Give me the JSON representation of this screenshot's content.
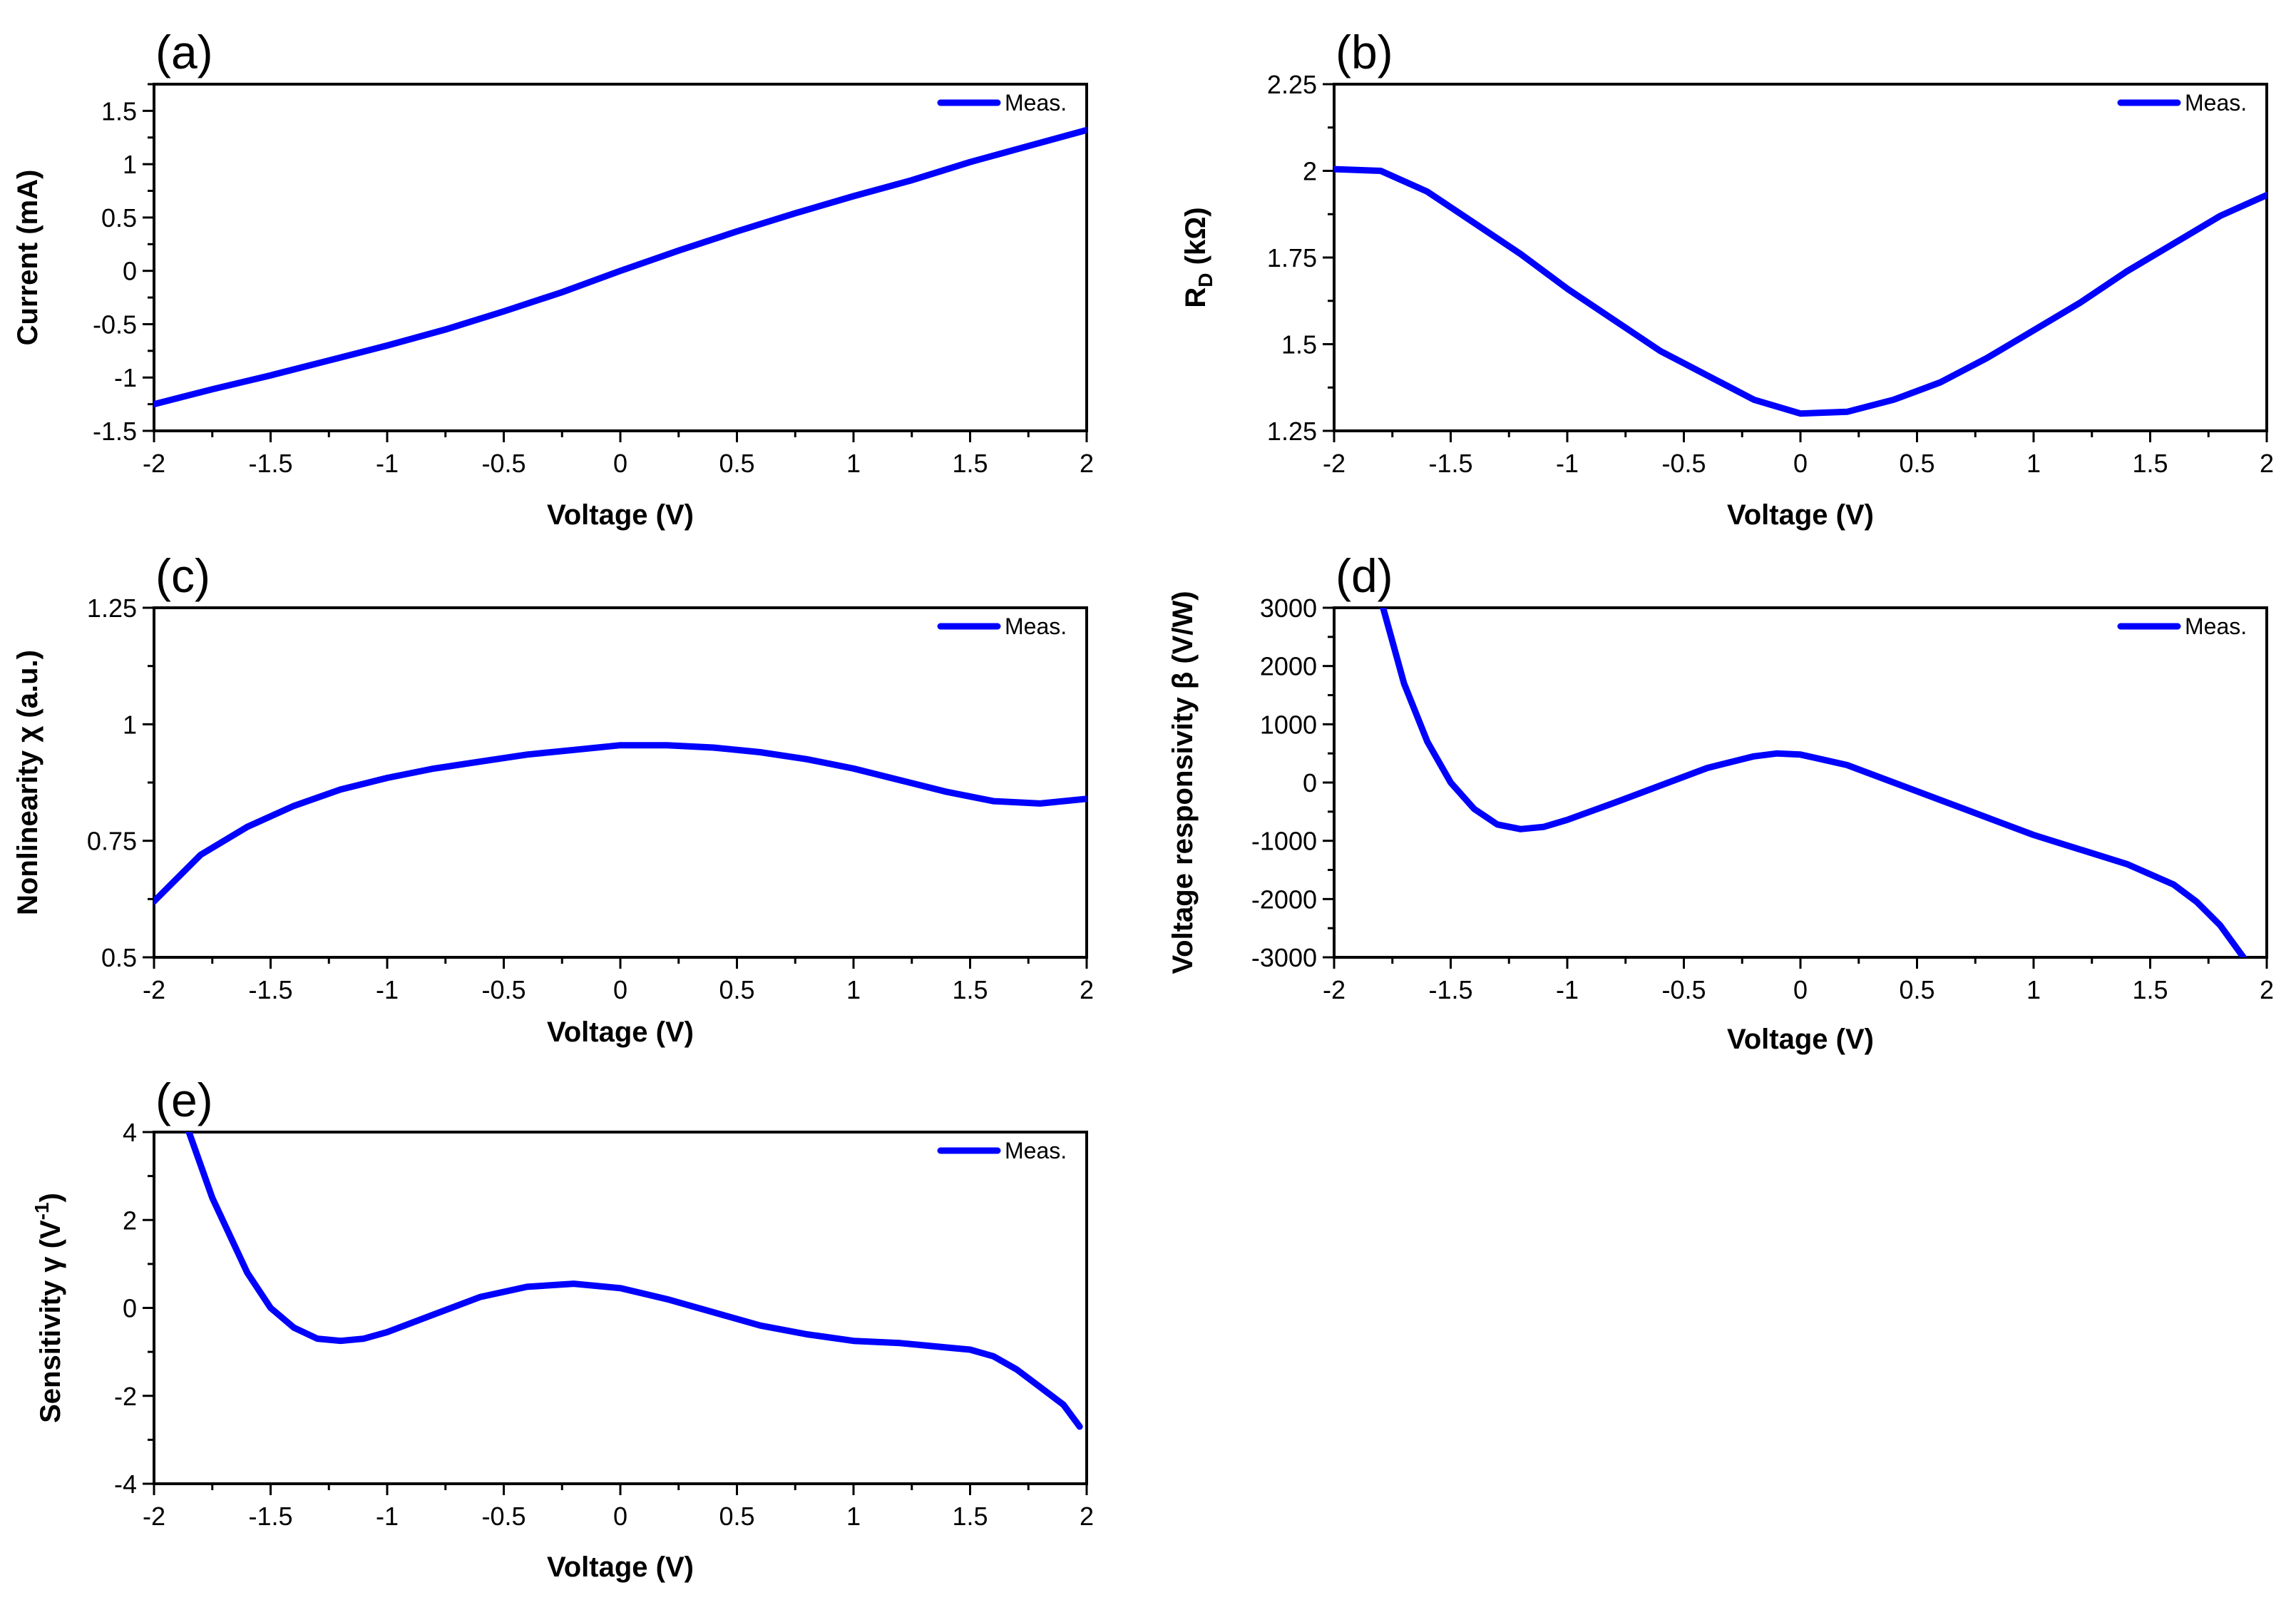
{
  "chart_data": [
    {
      "panel": "(a)",
      "type": "line",
      "xlabel": "Voltage (V)",
      "ylabel": "Current (mA)",
      "xlim": [
        -2,
        2
      ],
      "ylim": [
        -1.5,
        1.75
      ],
      "xticks": [
        -2,
        -1.5,
        -1,
        -0.5,
        0,
        0.5,
        1,
        1.5,
        2
      ],
      "yticks": [
        -1.5,
        -1,
        -0.5,
        0,
        0.5,
        1,
        1.5
      ],
      "xtick_labels": [
        "-2",
        "-1.5",
        "-1",
        "-0.5",
        "0",
        "0.5",
        "1",
        "1.5",
        "2"
      ],
      "ytick_labels": [
        "-1.5",
        "-1",
        "-0.5",
        "0",
        "0.5",
        "1",
        "1.5"
      ],
      "legend": "top-right",
      "series": [
        {
          "name": "Meas.",
          "color": "#0000ff",
          "x": [
            -2,
            -1.75,
            -1.5,
            -1.25,
            -1,
            -0.75,
            -0.5,
            -0.25,
            0,
            0.25,
            0.5,
            0.75,
            1,
            1.25,
            1.5,
            1.75,
            2
          ],
          "y": [
            -1.25,
            -1.11,
            -0.98,
            -0.84,
            -0.7,
            -0.55,
            -0.38,
            -0.2,
            0.0,
            0.19,
            0.37,
            0.54,
            0.7,
            0.85,
            1.02,
            1.17,
            1.32
          ]
        }
      ]
    },
    {
      "panel": "(b)",
      "type": "line",
      "xlabel": "Voltage (V)",
      "ylabel": "RD (kΩ)",
      "ylabel_main": "R",
      "ylabel_sub": "D",
      "ylabel_rest": " (kΩ)",
      "xlim": [
        -2,
        2
      ],
      "ylim": [
        1.25,
        2.25
      ],
      "xticks": [
        -2,
        -1.5,
        -1,
        -0.5,
        0,
        0.5,
        1,
        1.5,
        2
      ],
      "yticks": [
        1.25,
        1.5,
        1.75,
        2,
        2.25
      ],
      "xtick_labels": [
        "-2",
        "-1.5",
        "-1",
        "-0.5",
        "0",
        "0.5",
        "1",
        "1.5",
        "2"
      ],
      "ytick_labels": [
        "1.25",
        "1.5",
        "1.75",
        "2",
        "2.25"
      ],
      "legend": "top-right",
      "series": [
        {
          "name": "Meas.",
          "color": "#0000ff",
          "x": [
            -2,
            -1.8,
            -1.6,
            -1.4,
            -1.2,
            -1,
            -0.8,
            -0.6,
            -0.4,
            -0.2,
            0,
            0.2,
            0.4,
            0.6,
            0.8,
            1,
            1.2,
            1.4,
            1.6,
            1.8,
            2
          ],
          "y": [
            2.005,
            2.0,
            1.94,
            1.85,
            1.76,
            1.66,
            1.57,
            1.48,
            1.41,
            1.34,
            1.3,
            1.305,
            1.34,
            1.39,
            1.46,
            1.54,
            1.62,
            1.71,
            1.79,
            1.87,
            1.93
          ]
        }
      ]
    },
    {
      "panel": "(c)",
      "type": "line",
      "xlabel": "Voltage (V)",
      "ylabel": "Nonlinearity χ (a.u.)",
      "xlim": [
        -2,
        2
      ],
      "ylim": [
        0.5,
        1.25
      ],
      "xticks": [
        -2,
        -1.5,
        -1,
        -0.5,
        0,
        0.5,
        1,
        1.5,
        2
      ],
      "yticks": [
        0.5,
        0.75,
        1,
        1.25
      ],
      "xtick_labels": [
        "-2",
        "-1.5",
        "-1",
        "-0.5",
        "0",
        "0.5",
        "1",
        "1.5",
        "2"
      ],
      "ytick_labels": [
        "0.5",
        "0.75",
        "1",
        "1.25"
      ],
      "legend": "top-right",
      "series": [
        {
          "name": "Meas.",
          "color": "#0000ff",
          "x": [
            -2,
            -1.8,
            -1.6,
            -1.4,
            -1.2,
            -1,
            -0.8,
            -0.6,
            -0.4,
            -0.2,
            0,
            0.2,
            0.4,
            0.6,
            0.8,
            1,
            1.2,
            1.4,
            1.6,
            1.8,
            2
          ],
          "y": [
            0.62,
            0.72,
            0.78,
            0.825,
            0.86,
            0.885,
            0.905,
            0.92,
            0.935,
            0.945,
            0.955,
            0.955,
            0.95,
            0.94,
            0.925,
            0.905,
            0.88,
            0.855,
            0.835,
            0.83,
            0.84
          ]
        }
      ]
    },
    {
      "panel": "(d)",
      "type": "line",
      "xlabel": "Voltage (V)",
      "ylabel": "Voltage responsivity β (V/W)",
      "xlim": [
        -2,
        2
      ],
      "ylim": [
        -3000,
        3000
      ],
      "xticks": [
        -2,
        -1.5,
        -1,
        -0.5,
        0,
        0.5,
        1,
        1.5,
        2
      ],
      "yticks": [
        -3000,
        -2000,
        -1000,
        0,
        1000,
        2000,
        3000
      ],
      "xtick_labels": [
        "-2",
        "-1.5",
        "-1",
        "-0.5",
        "0",
        "0.5",
        "1",
        "1.5",
        "2"
      ],
      "ytick_labels": [
        "-3000",
        "-2000",
        "-1000",
        "0",
        "1000",
        "2000",
        "3000"
      ],
      "legend": "top-right",
      "series": [
        {
          "name": "Meas.",
          "color": "#0000ff",
          "x": [
            -1.79,
            -1.7,
            -1.6,
            -1.5,
            -1.4,
            -1.3,
            -1.2,
            -1.1,
            -1,
            -0.8,
            -0.6,
            -0.4,
            -0.2,
            -0.1,
            0,
            0.2,
            0.4,
            0.6,
            0.8,
            1,
            1.2,
            1.4,
            1.6,
            1.7,
            1.8,
            1.9
          ],
          "y": [
            3000,
            1700,
            700,
            0,
            -450,
            -720,
            -800,
            -760,
            -640,
            -350,
            -50,
            250,
            450,
            500,
            480,
            300,
            0,
            -300,
            -600,
            -900,
            -1150,
            -1400,
            -1750,
            -2050,
            -2450,
            -3000
          ]
        }
      ]
    },
    {
      "panel": "(e)",
      "type": "line",
      "xlabel": "Voltage (V)",
      "ylabel": "Sensitivity γ (V-1)",
      "ylabel_main": "Sensitivity γ (V",
      "ylabel_sup": "-1",
      "ylabel_rest": ")",
      "xlim": [
        -2,
        2
      ],
      "ylim": [
        -4,
        4
      ],
      "xticks": [
        -2,
        -1.5,
        -1,
        -0.5,
        0,
        0.5,
        1,
        1.5,
        2
      ],
      "yticks": [
        -4,
        -2,
        0,
        2,
        4
      ],
      "xtick_labels": [
        "-2",
        "-1.5",
        "-1",
        "-0.5",
        "0",
        "0.5",
        "1",
        "1.5",
        "2"
      ],
      "ytick_labels": [
        "-4",
        "-2",
        "0",
        "2",
        "4"
      ],
      "legend": "top-right",
      "series": [
        {
          "name": "Meas.",
          "color": "#0000ff",
          "x": [
            -1.85,
            -1.75,
            -1.6,
            -1.5,
            -1.4,
            -1.3,
            -1.2,
            -1.1,
            -1,
            -0.8,
            -0.6,
            -0.4,
            -0.2,
            0,
            0.2,
            0.4,
            0.6,
            0.8,
            1,
            1.2,
            1.4,
            1.5,
            1.6,
            1.7,
            1.8,
            1.9,
            1.97
          ],
          "y": [
            4,
            2.5,
            0.8,
            0.0,
            -0.45,
            -0.7,
            -0.75,
            -0.7,
            -0.55,
            -0.15,
            0.25,
            0.48,
            0.55,
            0.45,
            0.2,
            -0.1,
            -0.4,
            -0.6,
            -0.75,
            -0.8,
            -0.9,
            -0.95,
            -1.1,
            -1.4,
            -1.8,
            -2.2,
            -2.7
          ]
        }
      ]
    }
  ]
}
